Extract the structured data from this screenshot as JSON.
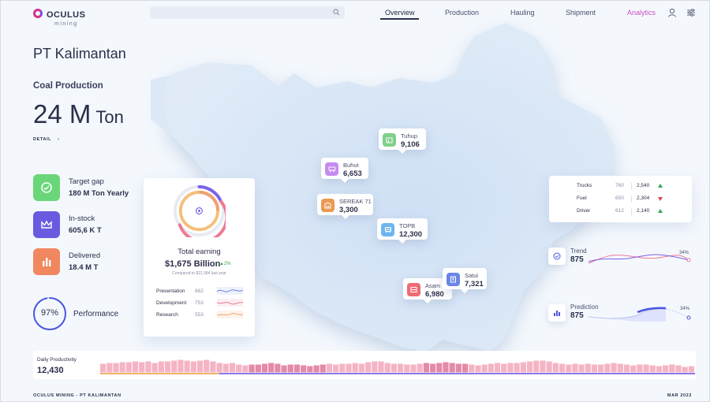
{
  "header": {
    "logo_title": "OCULUS",
    "logo_subtitle": "mining",
    "search_placeholder": "",
    "nav": [
      {
        "label": "Overview",
        "active": true
      },
      {
        "label": "Production",
        "active": false
      },
      {
        "label": "Hauling",
        "active": false
      },
      {
        "label": "Shipment",
        "active": false
      },
      {
        "label": "Analytics",
        "active": false
      }
    ],
    "icons": [
      "user-icon",
      "settings-sliders-icon"
    ]
  },
  "company": "PT Kalimantan",
  "coal": {
    "label": "Coal Production",
    "value": "24 M",
    "unit": "Ton",
    "detail_label": "DETAIL"
  },
  "stats": [
    {
      "title": "Target gap",
      "value": "180 M Ton Yearly",
      "icon": "target-icon",
      "color": "#6ad67a"
    },
    {
      "title": "In-stock",
      "value": "605,6 K T",
      "icon": "crown-icon",
      "color": "#6a5ae0"
    },
    {
      "title": "Delivered",
      "value": "18.4 M T",
      "icon": "bar-chart-icon",
      "color": "#f0875f"
    }
  ],
  "performance": {
    "percent": 97,
    "percent_label": "97%",
    "label": "Performance"
  },
  "earnings": {
    "title": "Total earning",
    "value": "$1,675 Billion",
    "change": "2%",
    "compare": "Compared to $21,584 last year",
    "rows": [
      {
        "label": "Presentation",
        "value": "862"
      },
      {
        "label": "Development",
        "value": "753"
      },
      {
        "label": "Research",
        "value": "553"
      }
    ]
  },
  "pins": [
    {
      "name": "Tuhup",
      "value": "9,106",
      "icon": "building-icon",
      "color": "#7fd08c"
    },
    {
      "name": "Buhut",
      "value": "6,653",
      "icon": "truck-icon",
      "color": "#c58bf0"
    },
    {
      "name": "SEREAK 71",
      "value": "3,300",
      "icon": "warehouse-icon",
      "color": "#e99a53"
    },
    {
      "name": "TOPB",
      "value": "12,300",
      "icon": "vehicle-icon",
      "color": "#6db5f0"
    },
    {
      "name": "Satui",
      "value": "7,321",
      "icon": "document-icon",
      "color": "#6a85e8"
    },
    {
      "name": "Asam",
      "value": "6,980",
      "icon": "storage-icon",
      "color": "#ef6b76"
    }
  ],
  "vehicles": [
    {
      "label": "Trucks",
      "prev": "760",
      "current": "2,540",
      "trend": "up"
    },
    {
      "label": "Fuel",
      "prev": "650",
      "current": "2,304",
      "trend": "down"
    },
    {
      "label": "Driver",
      "prev": "612",
      "current": "2,140",
      "trend": "up"
    }
  ],
  "trend": {
    "title": "Trend",
    "value": "875",
    "pct": "34%"
  },
  "prediction": {
    "title": "Prediction",
    "value": "875",
    "pct": "34%"
  },
  "productivity": {
    "title": "Daily Productivity",
    "value": "12,430",
    "bars": [
      0.55,
      0.6,
      0.6,
      0.65,
      0.65,
      0.7,
      0.65,
      0.7,
      0.6,
      0.7,
      0.7,
      0.75,
      0.8,
      0.75,
      0.7,
      0.75,
      0.8,
      0.7,
      0.6,
      0.55,
      0.6,
      0.5,
      0.45,
      0.5,
      0.5,
      0.55,
      0.6,
      0.55,
      0.45,
      0.5,
      0.5,
      0.45,
      0.4,
      0.45,
      0.5,
      0.55,
      0.5,
      0.55,
      0.55,
      0.6,
      0.55,
      0.65,
      0.7,
      0.7,
      0.6,
      0.55,
      0.55,
      0.5,
      0.5,
      0.55,
      0.6,
      0.55,
      0.6,
      0.65,
      0.6,
      0.55,
      0.55,
      0.5,
      0.45,
      0.5,
      0.55,
      0.6,
      0.55,
      0.6,
      0.6,
      0.65,
      0.7,
      0.75,
      0.75,
      0.7,
      0.6,
      0.55,
      0.5,
      0.55,
      0.5,
      0.55,
      0.5,
      0.5,
      0.55,
      0.6,
      0.55,
      0.5,
      0.45,
      0.5,
      0.5,
      0.45,
      0.4,
      0.45,
      0.5,
      0.45,
      0.35,
      0.4
    ],
    "highlight_ranges": [
      [
        23,
        27
      ],
      [
        28,
        34
      ],
      [
        50,
        56
      ]
    ]
  },
  "footer": {
    "left": "OCULUS MINING - PT KALIMANTAN",
    "right": "MAR 2022"
  }
}
